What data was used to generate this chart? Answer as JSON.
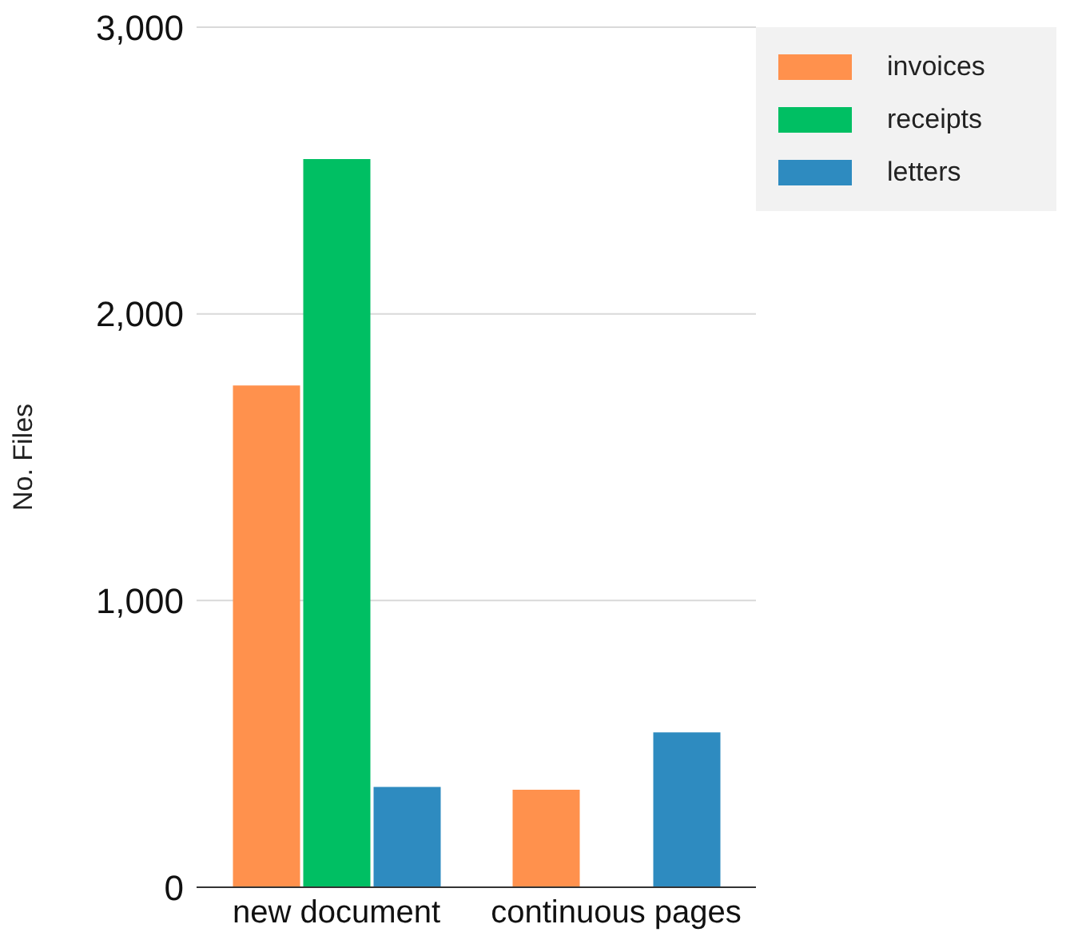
{
  "chart_data": {
    "type": "bar",
    "ylabel": "No. Files",
    "categories": [
      "new document",
      "continuous pages"
    ],
    "series": [
      {
        "name": "invoices",
        "color": "#ff914d",
        "values": [
          1750,
          340
        ]
      },
      {
        "name": "receipts",
        "color": "#00bf63",
        "values": [
          2540,
          null
        ]
      },
      {
        "name": "letters",
        "color": "#2e8bc0",
        "values": [
          350,
          540
        ]
      }
    ],
    "ylim": [
      0,
      3000
    ],
    "yticks": [
      {
        "value": 0,
        "label": "0"
      },
      {
        "value": 1000,
        "label": "1,000"
      },
      {
        "value": 2000,
        "label": "2,000"
      },
      {
        "value": 3000,
        "label": "3,000"
      }
    ],
    "grid": "y",
    "legend": "top right"
  }
}
